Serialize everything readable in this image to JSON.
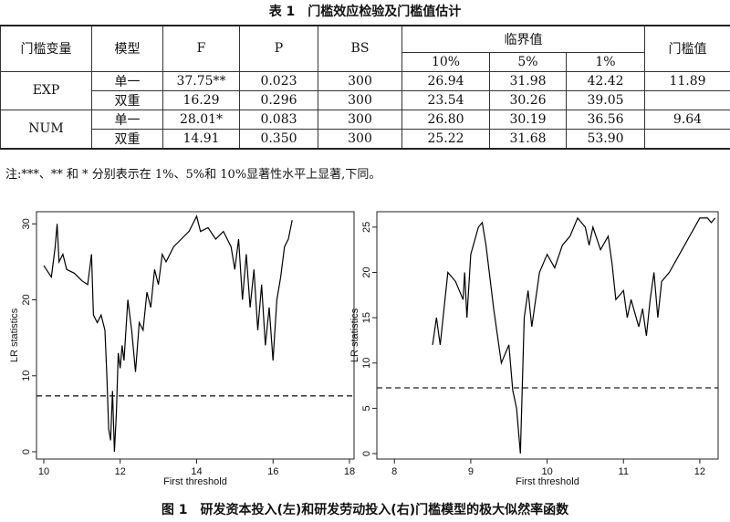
{
  "table": {
    "title": "表 1　门槛效应检验及门槛值估计",
    "header": {
      "variable": "门槛变量",
      "model": "模型",
      "f": "F",
      "p": "P",
      "bs": "BS",
      "critical": "临界值",
      "levels": [
        "10%",
        "5%",
        "1%"
      ],
      "threshold": "门槛值"
    },
    "groups": [
      {
        "variable": "EXP",
        "threshold": "11.89",
        "rows": [
          {
            "model": "单一",
            "values": [
              "37.75**",
              "0.023",
              "300",
              "26.94",
              "31.98",
              "42.42"
            ]
          },
          {
            "model": "双重",
            "values": [
              "16.29",
              "0.296",
              "300",
              "23.54",
              "30.26",
              "39.05"
            ]
          }
        ]
      },
      {
        "variable": "NUM",
        "threshold": "9.64",
        "rows": [
          {
            "model": "单一",
            "values": [
              "28.01*",
              "0.083",
              "300",
              "26.80",
              "30.19",
              "36.56"
            ]
          },
          {
            "model": "双重",
            "values": [
              "14.91",
              "0.350",
              "300",
              "25.22",
              "31.68",
              "53.90"
            ]
          }
        ]
      }
    ]
  },
  "note": "注:***、** 和 * 分别表示在 1%、5%和 10%显著性水平上显著,下同。",
  "caption": "图 1　研发资本投入(左)和研发劳动投入(右)门槛模型的极大似然率函数",
  "chart_data": [
    {
      "type": "line",
      "x_label": "First threshold",
      "y_label": "LR statistics",
      "color": "#000000",
      "xlim": [
        9.81,
        18.12
      ],
      "ylim": [
        -0.96,
        31.6
      ],
      "xticks": [
        10,
        12,
        14,
        16,
        18
      ],
      "yticks": [
        0,
        10,
        20,
        30
      ],
      "hline": 7.35,
      "hline_style": "dashed",
      "x": [
        10.0,
        10.2,
        10.3,
        10.35,
        10.4,
        10.5,
        10.6,
        10.8,
        11.0,
        11.15,
        11.2,
        11.25,
        11.3,
        11.4,
        11.5,
        11.6,
        11.65,
        11.7,
        11.75,
        11.8,
        11.85,
        11.9,
        11.95,
        12.0,
        12.05,
        12.1,
        12.2,
        12.3,
        12.4,
        12.5,
        12.6,
        12.7,
        12.8,
        12.9,
        13.0,
        13.1,
        13.2,
        13.4,
        13.6,
        13.8,
        14.0,
        14.1,
        14.3,
        14.5,
        14.7,
        14.9,
        15.0,
        15.1,
        15.2,
        15.3,
        15.4,
        15.5,
        15.6,
        15.7,
        15.8,
        15.9,
        16.0,
        16.1,
        16.2,
        16.3,
        16.4,
        16.5
      ],
      "values": [
        24.5,
        23,
        27,
        30,
        25,
        26,
        24,
        23.5,
        22.5,
        22,
        24,
        26,
        18,
        17,
        18,
        16,
        10,
        3,
        1.5,
        8,
        0,
        5,
        13,
        11,
        14,
        12,
        20,
        16,
        10.5,
        17,
        16,
        21,
        19,
        24,
        22,
        26,
        25,
        27,
        28,
        29,
        31,
        29,
        29.5,
        28,
        29,
        27,
        24,
        28,
        20,
        26,
        19,
        24,
        16,
        22,
        14,
        19,
        12,
        20,
        23,
        27,
        28,
        30.5
      ]
    },
    {
      "type": "line",
      "x_label": "First threshold",
      "y_label": "LR statistics",
      "color": "#000000",
      "xlim": [
        7.77,
        12.24
      ],
      "ylim": [
        -0.6,
        26.7
      ],
      "xticks": [
        8,
        9,
        10,
        11,
        12
      ],
      "yticks": [
        0,
        5,
        10,
        15,
        20,
        25
      ],
      "hline": 7.26,
      "hline_style": "dashed",
      "x": [
        8.5,
        8.55,
        8.6,
        8.7,
        8.8,
        8.9,
        8.92,
        8.95,
        9.0,
        9.1,
        9.15,
        9.2,
        9.3,
        9.4,
        9.5,
        9.55,
        9.6,
        9.65,
        9.7,
        9.75,
        9.8,
        9.9,
        10.0,
        10.1,
        10.2,
        10.3,
        10.4,
        10.5,
        10.55,
        10.6,
        10.7,
        10.8,
        10.85,
        10.9,
        11.0,
        11.05,
        11.1,
        11.2,
        11.25,
        11.3,
        11.35,
        11.4,
        11.45,
        11.5,
        11.6,
        11.8,
        12.0,
        12.1,
        12.15,
        12.2
      ],
      "values": [
        12,
        15,
        12,
        20,
        19,
        17,
        20,
        15,
        22,
        25,
        25.5,
        23,
        16,
        10,
        12,
        7,
        5,
        0,
        15,
        18,
        14,
        20,
        22,
        20.5,
        23,
        24,
        26,
        25,
        23,
        25,
        22.5,
        24,
        21,
        17,
        18,
        15,
        17,
        14,
        16,
        13,
        17,
        20,
        15,
        19,
        20,
        23,
        26,
        26,
        25.5,
        26
      ]
    }
  ]
}
